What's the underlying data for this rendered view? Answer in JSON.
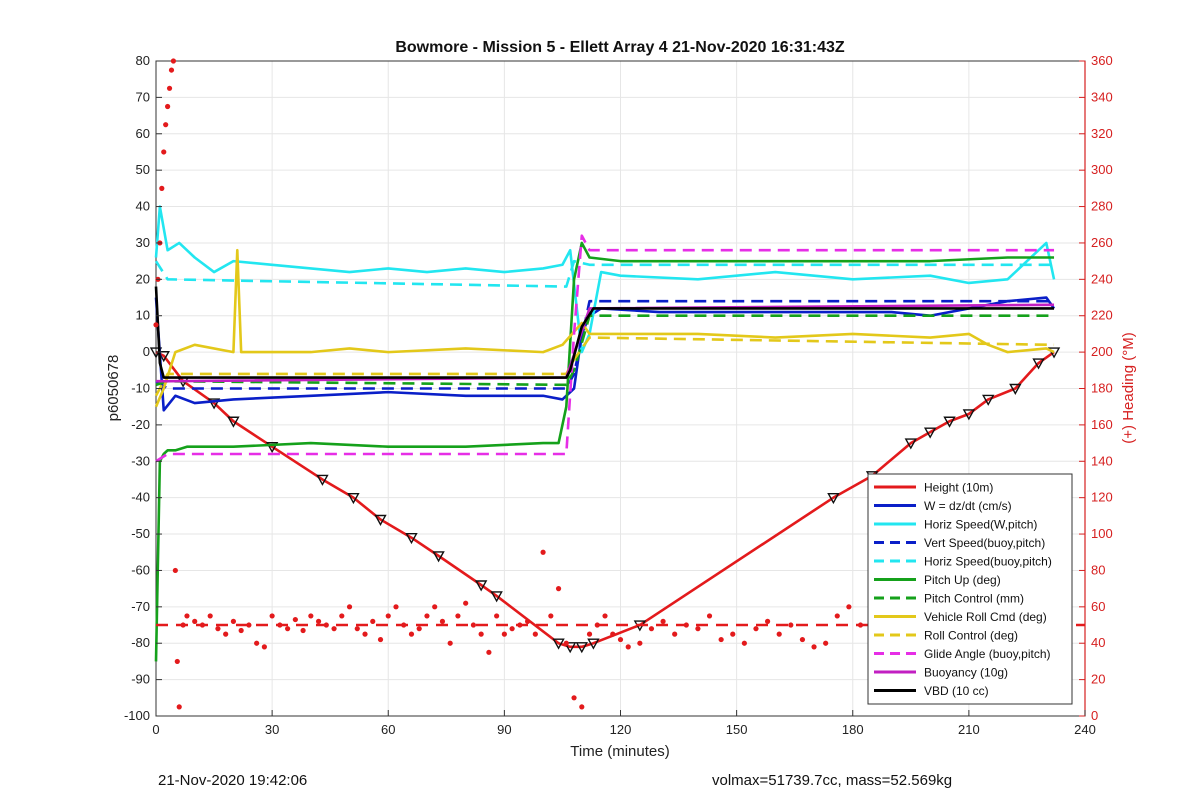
{
  "chart_data": {
    "type": "line",
    "title": "Bowmore - Mission 5 - Ellett Array 4 21-Nov-2020 16:31:43Z",
    "xlabel": "Time (minutes)",
    "ylabel": "p6050678",
    "y2label": "(+) Heading (°M)",
    "xlim": [
      0,
      240
    ],
    "ylim": [
      -100,
      80
    ],
    "y2lim": [
      0,
      360
    ],
    "xticks": [
      0,
      30,
      60,
      90,
      120,
      150,
      180,
      210,
      240
    ],
    "yticks": [
      -100,
      -90,
      -80,
      -70,
      -60,
      -50,
      -40,
      -30,
      -20,
      -10,
      0,
      10,
      20,
      30,
      40,
      50,
      60,
      70,
      80
    ],
    "y2ticks": [
      0,
      20,
      40,
      60,
      80,
      100,
      120,
      140,
      160,
      180,
      200,
      220,
      240,
      260,
      280,
      300,
      320,
      340,
      360
    ],
    "grid": true,
    "legend_position": "bottom-right",
    "series": [
      {
        "name": "Height (10m)",
        "color": "#e31a1c",
        "style": "solid",
        "markers": true,
        "x": [
          0,
          2,
          7,
          15,
          20,
          30,
          43,
          51,
          58,
          66,
          73,
          84,
          88,
          104,
          107,
          110,
          113,
          125,
          175,
          185,
          195,
          200,
          205,
          210,
          215,
          222,
          228,
          232
        ],
        "y": [
          0,
          -1,
          -8,
          -14,
          -19,
          -26,
          -35,
          -40,
          -46,
          -51,
          -56,
          -64,
          -67,
          -80,
          -81,
          -81,
          -80,
          -75,
          -40,
          -34,
          -25,
          -22,
          -19,
          -17,
          -13,
          -10,
          -3,
          0
        ]
      },
      {
        "name": "W = dz/dt (cm/s)",
        "color": "#0a1fc8",
        "style": "solid",
        "x": [
          0,
          2,
          5,
          10,
          20,
          40,
          60,
          80,
          100,
          105,
          108,
          110,
          112,
          115,
          130,
          150,
          170,
          190,
          200,
          210,
          220,
          230,
          232
        ],
        "y": [
          15,
          -16,
          -12,
          -14,
          -13,
          -12,
          -11,
          -12,
          -12,
          -13,
          -10,
          5,
          10,
          12,
          11,
          11,
          11,
          11,
          10,
          12,
          14,
          15,
          12
        ]
      },
      {
        "name": "Horiz Speed(W,pitch)",
        "color": "#22e6f0",
        "style": "solid",
        "x": [
          0,
          1,
          3,
          6,
          10,
          15,
          20,
          30,
          40,
          50,
          60,
          70,
          80,
          90,
          100,
          105,
          107,
          110,
          112,
          115,
          120,
          140,
          160,
          180,
          200,
          210,
          220,
          230,
          232
        ],
        "y": [
          26,
          40,
          28,
          30,
          26,
          22,
          25,
          24,
          23,
          22,
          23,
          22,
          23,
          22,
          23,
          24,
          28,
          0,
          5,
          22,
          21,
          20,
          22,
          20,
          21,
          19,
          20,
          30,
          20
        ]
      },
      {
        "name": "Vert Speed(buoy,pitch)",
        "color": "#0a1fc8",
        "style": "dashed",
        "x": [
          0,
          3,
          106,
          108,
          112,
          232
        ],
        "y": [
          -8,
          -10,
          -10,
          -6,
          14,
          14
        ]
      },
      {
        "name": "Horiz Speed(buoy,pitch)",
        "color": "#22e6f0",
        "style": "dashed",
        "x": [
          0,
          3,
          106,
          108,
          112,
          232
        ],
        "y": [
          25,
          20,
          18,
          25,
          24,
          24
        ]
      },
      {
        "name": "Pitch Up (deg)",
        "color": "#15a11b",
        "style": "solid",
        "x": [
          0,
          1,
          2,
          3,
          5,
          8,
          20,
          40,
          60,
          80,
          100,
          104,
          106,
          108,
          110,
          112,
          120,
          150,
          180,
          200,
          220,
          232
        ],
        "y": [
          -85,
          -30,
          -28,
          -27,
          -27,
          -26,
          -26,
          -25,
          -26,
          -26,
          -25,
          -25,
          -15,
          20,
          30,
          26,
          25,
          25,
          25,
          25,
          26,
          26
        ]
      },
      {
        "name": "Pitch Control (mm)",
        "color": "#15a11b",
        "style": "dashed",
        "x": [
          0,
          3,
          106,
          108,
          112,
          232
        ],
        "y": [
          -9,
          -8,
          -9,
          -5,
          10,
          10
        ]
      },
      {
        "name": "Vehicle Roll Cmd (deg)",
        "color": "#e3c81a",
        "style": "solid",
        "x": [
          0,
          2,
          5,
          10,
          20,
          21,
          22,
          40,
          50,
          60,
          80,
          100,
          105,
          110,
          112,
          140,
          160,
          180,
          200,
          210,
          215,
          220,
          230,
          232
        ],
        "y": [
          -15,
          -10,
          0,
          2,
          0,
          28,
          0,
          0,
          1,
          0,
          1,
          0,
          2,
          8,
          5,
          5,
          4,
          5,
          4,
          5,
          2,
          0,
          1,
          0
        ]
      },
      {
        "name": "Roll Control (deg)",
        "color": "#e3c81a",
        "style": "dashed",
        "x": [
          0,
          3,
          106,
          108,
          112,
          232
        ],
        "y": [
          -12,
          -6,
          -6,
          -2,
          4,
          2
        ]
      },
      {
        "name": "Glide Angle (buoy,pitch)",
        "color": "#e62ee6",
        "style": "dashed",
        "x": [
          0,
          3,
          106,
          108,
          110,
          112,
          232
        ],
        "y": [
          -30,
          -28,
          -28,
          5,
          32,
          28,
          28
        ]
      },
      {
        "name": "Buoyancy (10g)",
        "color": "#c21fc2",
        "style": "solid",
        "x": [
          0,
          3,
          106,
          112,
          232
        ],
        "y": [
          -8,
          -8,
          -7,
          12,
          13
        ]
      },
      {
        "name": "VBD (10 cc)",
        "color": "#000000",
        "style": "solid",
        "x": [
          0,
          1,
          2,
          106,
          107,
          110,
          113,
          232
        ],
        "y": [
          18,
          -3,
          -7,
          -7,
          -5,
          7,
          12,
          12
        ]
      }
    ],
    "heading_series": {
      "name": "Heading (°M)",
      "axis": "right",
      "color": "#e31a1c",
      "style": "dots",
      "x": [
        0,
        0.5,
        1,
        1.5,
        2,
        2.5,
        3,
        3.5,
        4,
        4.5,
        5,
        5.5,
        6,
        7,
        8,
        10,
        12,
        14,
        16,
        18,
        20,
        22,
        24,
        26,
        28,
        30,
        32,
        34,
        36,
        38,
        40,
        42,
        44,
        46,
        48,
        50,
        52,
        54,
        56,
        58,
        60,
        62,
        64,
        66,
        68,
        70,
        72,
        74,
        76,
        78,
        80,
        82,
        84,
        86,
        88,
        90,
        92,
        94,
        96,
        98,
        100,
        102,
        104,
        106,
        108,
        110,
        112,
        114,
        116,
        118,
        120,
        122,
        125,
        128,
        131,
        134,
        137,
        140,
        143,
        146,
        149,
        152,
        155,
        158,
        161,
        164,
        167,
        170,
        173,
        176,
        179,
        182,
        185,
        188,
        191,
        194,
        197,
        200,
        203,
        206,
        209,
        212,
        215,
        218,
        221,
        224,
        227,
        230,
        232
      ],
      "y": [
        215,
        240,
        260,
        290,
        310,
        325,
        335,
        345,
        355,
        360,
        80,
        30,
        5,
        50,
        55,
        52,
        50,
        55,
        48,
        45,
        52,
        47,
        50,
        40,
        38,
        55,
        50,
        48,
        53,
        47,
        55,
        52,
        50,
        48,
        55,
        60,
        48,
        45,
        52,
        42,
        55,
        60,
        50,
        45,
        48,
        55,
        60,
        52,
        40,
        55,
        62,
        50,
        45,
        35,
        55,
        45,
        48,
        50,
        52,
        45,
        90,
        55,
        70,
        40,
        10,
        5,
        45,
        50,
        55,
        45,
        42,
        38,
        40,
        48,
        52,
        45,
        50,
        48,
        55,
        42,
        45,
        40,
        48,
        52,
        45,
        50,
        42,
        38,
        40,
        55,
        60,
        50,
        45,
        40,
        35,
        48,
        52,
        55,
        45,
        50,
        58,
        40,
        55,
        60,
        45,
        50,
        55,
        62,
        40
      ]
    },
    "heading_reference": {
      "axis": "right",
      "value": 50,
      "color": "#e31a1c",
      "style": "dashed"
    }
  },
  "footer": {
    "timestamp": "21-Nov-2020 19:42:06",
    "stats": "volmax=51739.7cc, mass=52.569kg"
  }
}
